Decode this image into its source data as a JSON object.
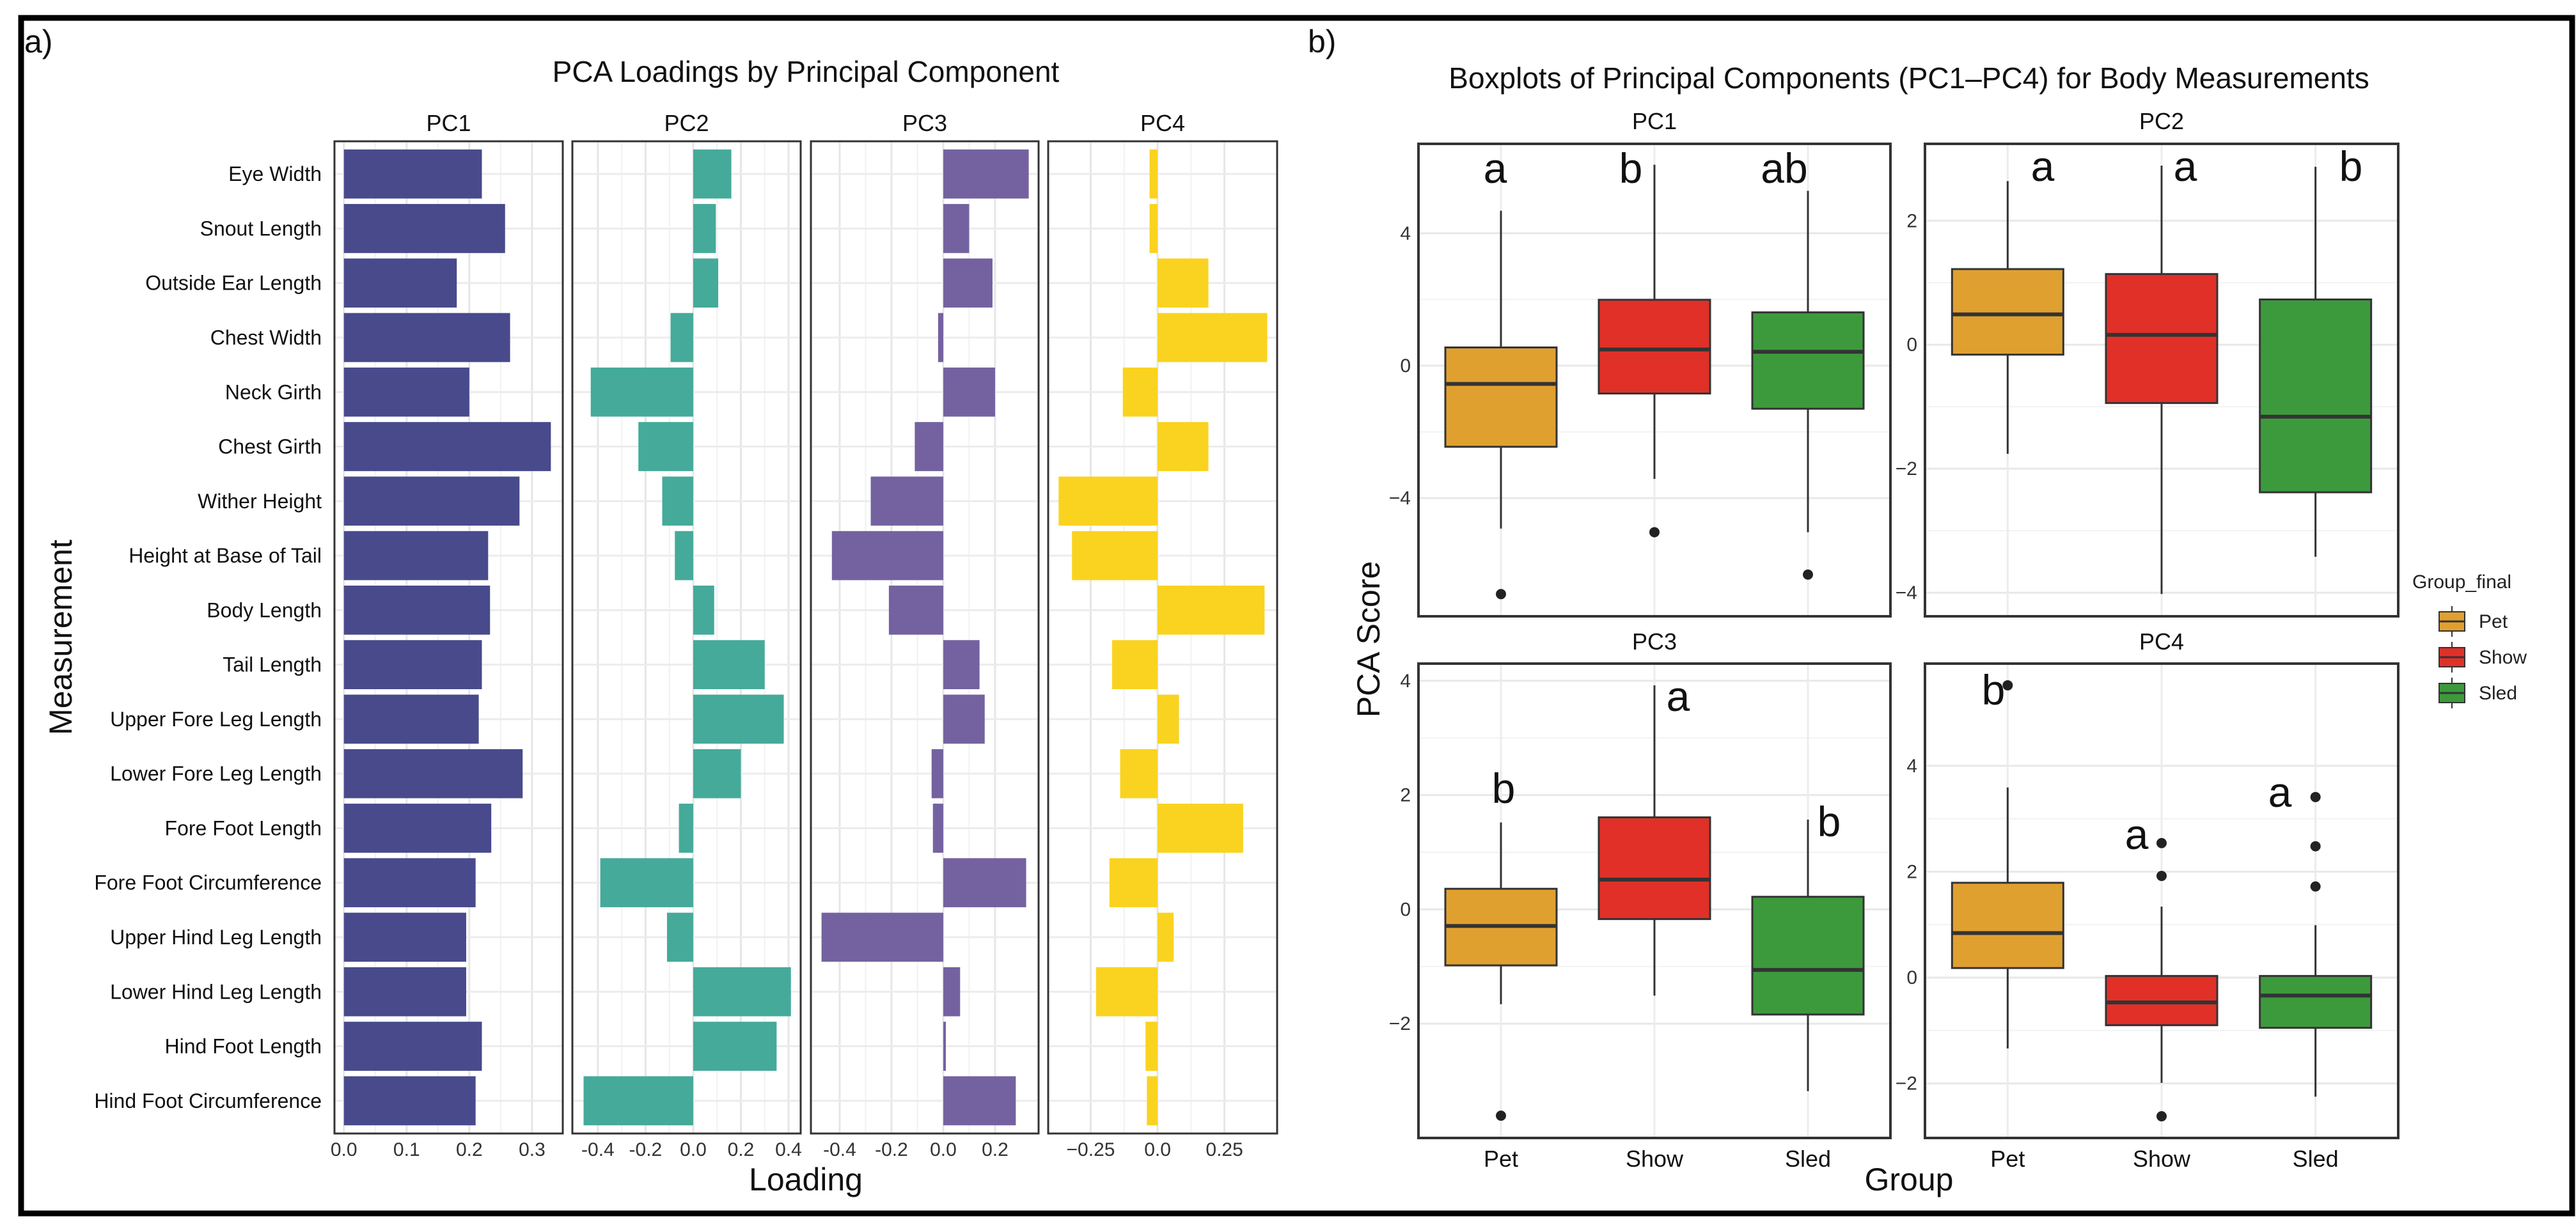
{
  "figure": {
    "label_a": "a)",
    "label_b": "b)"
  },
  "chart_data": [
    {
      "type": "bar",
      "orientation": "horizontal",
      "title": "PCA Loadings by Principal Component",
      "xlabel": "Loading",
      "ylabel": "Measurement",
      "categories": [
        "Eye Width",
        "Snout Length",
        "Outside Ear Length",
        "Chest Width",
        "Neck Girth",
        "Chest Girth",
        "Wither Height",
        "Height at Base of Tail",
        "Body Length",
        "Tail Length",
        "Upper Fore Leg Length",
        "Lower Fore Leg Length",
        "Fore Foot Length",
        "Fore Foot Circumference",
        "Upper Hind Leg Length",
        "Lower Hind Leg Length",
        "Hind Foot Length",
        "Hind Foot Circumference"
      ],
      "facets": [
        {
          "name": "PC1",
          "color": "#484a8c",
          "xlim": [
            -0.015,
            0.349
          ],
          "ticks": [
            0,
            0.1,
            0.2,
            0.3
          ],
          "tick_labels": [
            "0.0",
            "0.1",
            "0.2",
            "0.3"
          ],
          "values": [
            0.22,
            0.257,
            0.18,
            0.265,
            0.2,
            0.33,
            0.28,
            0.23,
            0.233,
            0.22,
            0.215,
            0.285,
            0.235,
            0.21,
            0.195,
            0.195,
            0.22,
            0.21
          ]
        },
        {
          "name": "PC2",
          "color": "#45aa9a",
          "xlim": [
            -0.507,
            0.451
          ],
          "ticks": [
            -0.4,
            -0.2,
            0,
            0.2,
            0.4
          ],
          "tick_labels": [
            "-0.4",
            "-0.2",
            "0.0",
            "0.2",
            "0.4"
          ],
          "values": [
            0.16,
            0.095,
            0.105,
            -0.095,
            -0.43,
            -0.23,
            -0.13,
            -0.077,
            0.088,
            0.3,
            0.38,
            0.2,
            -0.06,
            -0.39,
            -0.11,
            0.41,
            0.35,
            -0.46
          ]
        },
        {
          "name": "PC3",
          "color": "#7462a0",
          "xlim": [
            -0.511,
            0.368
          ],
          "ticks": [
            -0.4,
            -0.2,
            0,
            0.2
          ],
          "tick_labels": [
            "-0.4",
            "-0.2",
            "0.0",
            "0.2"
          ],
          "values": [
            0.33,
            0.1,
            0.19,
            -0.02,
            0.2,
            -0.11,
            -0.28,
            -0.43,
            -0.21,
            0.14,
            0.16,
            -0.045,
            -0.04,
            0.32,
            -0.47,
            0.065,
            0.01,
            0.28
          ]
        },
        {
          "name": "PC4",
          "color": "#fad320",
          "xlim": [
            -0.409,
            0.447
          ],
          "ticks": [
            -0.25,
            0,
            0.25
          ],
          "tick_labels": [
            "−0.25",
            "0.0",
            "0.25"
          ],
          "values": [
            -0.03,
            -0.03,
            0.19,
            0.41,
            -0.13,
            0.19,
            -0.37,
            -0.32,
            0.4,
            -0.17,
            0.08,
            -0.14,
            0.32,
            -0.18,
            0.06,
            -0.23,
            -0.045,
            -0.04
          ]
        }
      ]
    },
    {
      "type": "boxplot",
      "title": "Boxplots of Principal Components (PC1–PC4) for Body Measurements",
      "xlabel": "Group",
      "ylabel": "PCA Score",
      "categories": [
        "Pet",
        "Show",
        "Sled"
      ],
      "legend": {
        "title": "Group_final",
        "position": "right",
        "entries": [
          "Pet",
          "Show",
          "Sled"
        ]
      },
      "colors": {
        "Pet": "#e0a030",
        "Show": "#e03028",
        "Sled": "#3c9a3c"
      },
      "facets": [
        {
          "name": "PC1",
          "ylim": [
            -7.57,
            6.7
          ],
          "ticks": [
            -4,
            0,
            4
          ],
          "tick_labels": [
            "−4",
            "0",
            "4"
          ],
          "groups": [
            {
              "group": "Pet",
              "whisker_low": -4.92,
              "q1": -2.45,
              "median": -0.55,
              "q3": 0.55,
              "whisker_high": 4.68,
              "outliers": [
                -6.9
              ],
              "letter": "a"
            },
            {
              "group": "Show",
              "whisker_low": -3.42,
              "q1": -0.84,
              "median": 0.49,
              "q3": 1.99,
              "whisker_high": 6.07,
              "outliers": [
                -5.03
              ],
              "letter": "b"
            },
            {
              "group": "Sled",
              "whisker_low": -5.03,
              "q1": -1.3,
              "median": 0.42,
              "q3": 1.61,
              "whisker_high": 5.28,
              "outliers": [
                -6.31
              ],
              "letter": "ab"
            }
          ]
        },
        {
          "name": "PC2",
          "ylim": [
            -4.38,
            3.24
          ],
          "ticks": [
            -4,
            -2,
            0,
            2
          ],
          "tick_labels": [
            "−4",
            "−2",
            "0",
            "2"
          ],
          "groups": [
            {
              "group": "Pet",
              "whisker_low": -1.76,
              "q1": -0.16,
              "median": 0.49,
              "q3": 1.22,
              "whisker_high": 2.64,
              "outliers": [],
              "letter": "a"
            },
            {
              "group": "Show",
              "whisker_low": -4.02,
              "q1": -0.94,
              "median": 0.16,
              "q3": 1.14,
              "whisker_high": 2.89,
              "outliers": [],
              "letter": "a"
            },
            {
              "group": "Sled",
              "whisker_low": -3.42,
              "q1": -2.38,
              "median": -1.16,
              "q3": 0.73,
              "whisker_high": 2.87,
              "outliers": [],
              "letter": "b"
            }
          ]
        },
        {
          "name": "PC3",
          "ylim": [
            -4.0,
            4.3
          ],
          "ticks": [
            -2,
            0,
            2,
            4
          ],
          "tick_labels": [
            "−2",
            "0",
            "2",
            "4"
          ],
          "groups": [
            {
              "group": "Pet",
              "whisker_low": -1.66,
              "q1": -0.98,
              "median": -0.29,
              "q3": 0.36,
              "whisker_high": 1.52,
              "outliers": [
                -3.61
              ],
              "letter": "b"
            },
            {
              "group": "Show",
              "whisker_low": -1.51,
              "q1": -0.17,
              "median": 0.52,
              "q3": 1.61,
              "whisker_high": 3.92,
              "outliers": [],
              "letter": "a"
            },
            {
              "group": "Sled",
              "whisker_low": -3.18,
              "q1": -1.84,
              "median": -1.06,
              "q3": 0.22,
              "whisker_high": 1.57,
              "outliers": [],
              "letter": "b"
            }
          ]
        },
        {
          "name": "PC4",
          "ylim": [
            -3.03,
            5.93
          ],
          "ticks": [
            -2,
            0,
            2,
            4
          ],
          "tick_labels": [
            "−2",
            "0",
            "2",
            "4"
          ],
          "groups": [
            {
              "group": "Pet",
              "whisker_low": -1.34,
              "q1": 0.18,
              "median": 0.84,
              "q3": 1.79,
              "whisker_high": 3.59,
              "outliers": [
                5.52
              ],
              "letter": "b"
            },
            {
              "group": "Show",
              "whisker_low": -1.99,
              "q1": -0.9,
              "median": -0.47,
              "q3": 0.03,
              "whisker_high": 1.34,
              "outliers": [
                2.54,
                1.92,
                -2.62
              ],
              "letter": "a"
            },
            {
              "group": "Sled",
              "whisker_low": -2.25,
              "q1": -0.95,
              "median": -0.34,
              "q3": 0.03,
              "whisker_high": 0.99,
              "outliers": [
                3.41,
                2.48,
                1.72
              ],
              "letter": "a"
            }
          ]
        }
      ]
    }
  ]
}
